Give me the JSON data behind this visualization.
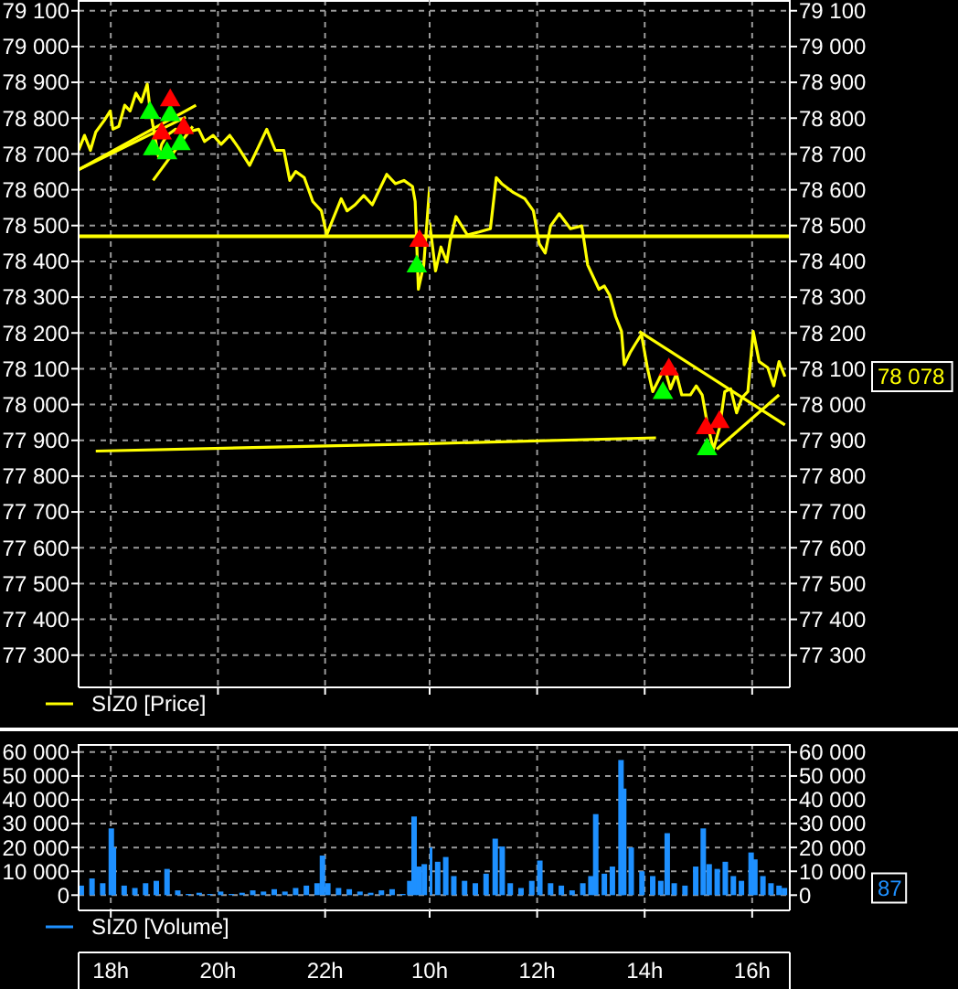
{
  "chart_data": [
    {
      "type": "line",
      "xlim": [
        17.4,
        23.95
      ],
      "xticks": [
        {
          "value": 18,
          "label": null
        },
        {
          "value": 20,
          "label": null
        },
        {
          "value": 22,
          "label": null
        }
      ],
      "ylim": [
        77210,
        79130
      ],
      "yticks": [
        {
          "value": 77300,
          "label": "77 300"
        },
        {
          "value": 77400,
          "label": "77 400"
        },
        {
          "value": 77500,
          "label": "77 500"
        },
        {
          "value": 77600,
          "label": "77 600"
        },
        {
          "value": 77700,
          "label": "77 700"
        },
        {
          "value": 77800,
          "label": "77 800"
        },
        {
          "value": 77900,
          "label": "77 900"
        },
        {
          "value": 78000,
          "label": "78 000"
        },
        {
          "value": 78100,
          "label": "78 100"
        },
        {
          "value": 78200,
          "label": "78 200"
        },
        {
          "value": 78300,
          "label": "78 300"
        },
        {
          "value": 78400,
          "label": "78 400"
        },
        {
          "value": 78500,
          "label": "78 500"
        },
        {
          "value": 78600,
          "label": "78 600"
        },
        {
          "value": 78700,
          "label": "78 700"
        },
        {
          "value": 78800,
          "label": "78 800"
        },
        {
          "value": 78900,
          "label": "78 900"
        },
        {
          "value": 79000,
          "label": "79 000"
        },
        {
          "value": 79100,
          "label": "79 100"
        }
      ],
      "tick_labels": "y",
      "grid": true,
      "legend": "bottom",
      "series": [
        {
          "name": "SIZ0 [Price]",
          "color": "#ffff00",
          "x": [
            17.4,
            17.51,
            17.62,
            17.72,
            17.88,
            17.99,
            18.04,
            18.15,
            18.26,
            18.36,
            18.47,
            18.57,
            18.68,
            18.73,
            18.79,
            18.89,
            18.95,
            19.05,
            19.21,
            19.43,
            19.64,
            19.75,
            19.91,
            20.06,
            20.22,
            20.38,
            20.59,
            20.75,
            20.91,
            21.07,
            21.23,
            21.34,
            21.45,
            21.61,
            21.77,
            21.93,
            22.03,
            22.14,
            22.3,
            22.41,
            22.56,
            22.72,
            22.88,
            23.04,
            23.15,
            23.31,
            23.47,
            23.63,
            23.68,
            23.74,
            23.84,
            23.95
          ],
          "values": [
            78710,
            78752,
            78710,
            78761,
            78794,
            78820,
            78769,
            78777,
            78836,
            78820,
            78870,
            78845,
            78895,
            78828,
            78777,
            78693,
            78727,
            78752,
            78769,
            78761,
            78769,
            78735,
            78752,
            78727,
            78752,
            78718,
            78668,
            78718,
            78769,
            78710,
            78710,
            78626,
            78651,
            78634,
            78567,
            78541,
            78474,
            78516,
            78575,
            78541,
            78558,
            78584,
            78558,
            78609,
            78643,
            78617,
            78626,
            78609,
            78567,
            78322,
            78390,
            78609
          ]
        },
        {
          "type": "line",
          "color": "#ffff00",
          "x": [
            17.72,
            23.95
          ],
          "values": [
            77870,
            77891
          ]
        },
        {
          "type": "line",
          "color": "#ffff00",
          "x": [
            17.4,
            19.59
          ],
          "values": [
            78656,
            78836
          ]
        },
        {
          "type": "line",
          "color": "#ffff00",
          "x": [
            17.4,
            19.4
          ],
          "values": [
            78656,
            78803
          ]
        },
        {
          "type": "line",
          "color": "#ffff00",
          "x": [
            18.79,
            19.53
          ],
          "values": [
            78626,
            78777
          ]
        },
        {
          "type": "scatter",
          "color": "#00ff00",
          "marker": "triangle",
          "x": [
            18.73,
            19.11,
            18.79,
            19.05,
            19.3,
            23.71
          ],
          "values": [
            78815,
            78808,
            78713,
            78702,
            78727,
            78386
          ]
        },
        {
          "type": "scatter",
          "color": "#ff0000",
          "marker": "triangle",
          "x": [
            19.11,
            18.95,
            19.36,
            23.76
          ],
          "values": [
            78850,
            78757,
            78772,
            78457
          ]
        }
      ],
      "ref_lines": [
        {
          "axis": "y",
          "value": 78470,
          "color": "#ffff00"
        }
      ]
    },
    {
      "type": "line",
      "xlim": [
        10.0,
        16.7
      ],
      "xticks": [
        {
          "value": 10,
          "label": null
        },
        {
          "value": 12,
          "label": null
        },
        {
          "value": 14,
          "label": null
        },
        {
          "value": 16,
          "label": null
        }
      ],
      "y2lim": [
        77210,
        79130
      ],
      "y2ticks": [
        {
          "value": 77300,
          "label": "77 300"
        },
        {
          "value": 77400,
          "label": "77 400"
        },
        {
          "value": 77500,
          "label": "77 500"
        },
        {
          "value": 77600,
          "label": "77 600"
        },
        {
          "value": 77700,
          "label": "77 700"
        },
        {
          "value": 77800,
          "label": "77 800"
        },
        {
          "value": 77900,
          "label": "77 900"
        },
        {
          "value": 78000,
          "label": "78 000"
        },
        {
          "value": 78100,
          "label": "78 100"
        },
        {
          "value": 78200,
          "label": "78 200"
        },
        {
          "value": 78300,
          "label": "78 300"
        },
        {
          "value": 78400,
          "label": "78 400"
        },
        {
          "value": 78500,
          "label": "78 500"
        },
        {
          "value": 78600,
          "label": "78 600"
        },
        {
          "value": 78700,
          "label": "78 700"
        },
        {
          "value": 78800,
          "label": "78 800"
        },
        {
          "value": 78900,
          "label": "78 900"
        },
        {
          "value": 79000,
          "label": "79 000"
        },
        {
          "value": 79100,
          "label": "79 100"
        }
      ],
      "tick_labels": "y",
      "grid": true,
      "series": [
        {
          "axis": "y2",
          "color": "#ffff00",
          "x": [
            10.0,
            10.11,
            10.21,
            10.32,
            10.38,
            10.49,
            10.7,
            10.92,
            11.13,
            11.24,
            11.34,
            11.56,
            11.77,
            11.93,
            12.04,
            12.15,
            12.25,
            12.41,
            12.62,
            12.83,
            12.94,
            13.15,
            13.25,
            13.35,
            13.46,
            13.57,
            13.62,
            13.73,
            13.83,
            13.94,
            14.05,
            14.15,
            14.26,
            14.37,
            14.48,
            14.59,
            14.69,
            14.85,
            14.96,
            15.07,
            15.17,
            15.28,
            15.39,
            15.49,
            15.6,
            15.71,
            15.81,
            15.92,
            16.02,
            16.13,
            16.29,
            16.4,
            16.5,
            16.61
          ],
          "values": [
            78508,
            78373,
            78440,
            78398,
            78457,
            78525,
            78474,
            78482,
            78491,
            78634,
            78617,
            78592,
            78575,
            78541,
            78449,
            78423,
            78499,
            78533,
            78491,
            78499,
            78390,
            78322,
            78331,
            78305,
            78246,
            78204,
            78111,
            78145,
            78170,
            78196,
            78103,
            78036,
            78069,
            78103,
            78044,
            78086,
            78027,
            78027,
            78052,
            78027,
            77943,
            77875,
            77934,
            78036,
            78044,
            77977,
            78019,
            78036,
            78204,
            78120,
            78103,
            78052,
            78120,
            78078
          ]
        },
        {
          "type": "line",
          "axis": "y2",
          "color": "#ffff00",
          "x": [
            10.0,
            14.21
          ],
          "values": [
            77891,
            77907
          ]
        },
        {
          "type": "line",
          "axis": "y2",
          "color": "#ffff00",
          "x": [
            13.9,
            16.61
          ],
          "values": [
            78204,
            77943
          ]
        },
        {
          "type": "line",
          "axis": "y2",
          "color": "#ffff00",
          "x": [
            15.34,
            16.5
          ],
          "values": [
            77875,
            78027
          ]
        },
        {
          "type": "scatter",
          "axis": "y2",
          "color": "#00ff00",
          "marker": "triangle",
          "x": [
            14.34,
            15.16
          ],
          "values": [
            78032,
            77875
          ]
        },
        {
          "type": "scatter",
          "axis": "y2",
          "color": "#ff0000",
          "marker": "triangle",
          "x": [
            14.45,
            15.14,
            15.39
          ],
          "values": [
            78098,
            77934,
            77951
          ]
        }
      ],
      "ref_lines": [
        {
          "axis": "y2",
          "value": 78470,
          "color": "#ffff00"
        }
      ],
      "annotations": [
        "78 078"
      ]
    },
    {
      "type": "bar",
      "xlim": [
        17.4,
        23.95
      ],
      "xticks": [
        {
          "value": 18,
          "label": "18h"
        },
        {
          "value": 20,
          "label": "20h"
        },
        {
          "value": 22,
          "label": "22h"
        }
      ],
      "ylim": [
        -6400,
        63400
      ],
      "yticks": [
        {
          "value": 0,
          "label": "0"
        },
        {
          "value": 10000,
          "label": "10 000"
        },
        {
          "value": 20000,
          "label": "20 000"
        },
        {
          "value": 30000,
          "label": "30 000"
        },
        {
          "value": 40000,
          "label": "40 000"
        },
        {
          "value": 50000,
          "label": "50 000"
        },
        {
          "value": 60000,
          "label": "60 000"
        }
      ],
      "grid": true,
      "legend": "bottom",
      "series": [
        {
          "name": "SIZ0 [Volume]",
          "color": "#1e90ff",
          "x": [
            17.45,
            17.65,
            17.85,
            18.01,
            18.05,
            18.25,
            18.45,
            18.65,
            18.85,
            19.05,
            19.25,
            19.45,
            19.65,
            19.85,
            20.05,
            20.25,
            20.45,
            20.65,
            20.85,
            21.05,
            21.25,
            21.45,
            21.65,
            21.85,
            21.95,
            22.05,
            22.25,
            22.45,
            22.65,
            22.85,
            23.05,
            23.25,
            23.45,
            23.58,
            23.66,
            23.75,
            23.85
          ],
          "values": [
            4000,
            7000,
            5000,
            28000,
            20000,
            4000,
            3000,
            5000,
            6000,
            11000,
            2000,
            500,
            1000,
            500,
            1500,
            500,
            1000,
            2000,
            1500,
            2500,
            1500,
            3000,
            4000,
            5000,
            16600,
            5000,
            3000,
            2500,
            1500,
            1000,
            2000,
            2500,
            500,
            6000,
            33000,
            12000,
            13000
          ]
        }
      ]
    },
    {
      "type": "bar",
      "xlim": [
        10.0,
        16.7
      ],
      "xticks": [
        {
          "value": 10,
          "label": "10h"
        },
        {
          "value": 12,
          "label": "12h"
        },
        {
          "value": 14,
          "label": "14h"
        },
        {
          "value": 16,
          "label": "16h"
        }
      ],
      "y2lim": [
        -6400,
        63400
      ],
      "y2ticks": [
        {
          "value": 0,
          "label": "0"
        },
        {
          "value": 10000,
          "label": "10 000"
        },
        {
          "value": 20000,
          "label": "20 000"
        },
        {
          "value": 30000,
          "label": "30 000"
        },
        {
          "value": 40000,
          "label": "40 000"
        },
        {
          "value": 50000,
          "label": "50 000"
        },
        {
          "value": 60000,
          "label": "60 000"
        }
      ],
      "grid": true,
      "series": [
        {
          "color": "#1e90ff",
          "axis": "y2",
          "x": [
            10.0,
            10.15,
            10.3,
            10.45,
            10.65,
            10.85,
            11.05,
            11.22,
            11.35,
            11.5,
            11.7,
            11.9,
            12.05,
            12.25,
            12.45,
            12.65,
            12.85,
            13.0,
            13.09,
            13.25,
            13.4,
            13.56,
            13.61,
            13.75,
            13.95,
            14.15,
            14.3,
            14.42,
            14.55,
            14.75,
            14.95,
            15.09,
            15.2,
            15.35,
            15.5,
            15.65,
            15.8,
            15.98,
            16.05,
            16.2,
            16.35,
            16.5,
            16.6
          ],
          "values": [
            20000,
            14000,
            16000,
            8000,
            6000,
            5000,
            9000,
            23700,
            20400,
            5000,
            3000,
            6000,
            14500,
            5000,
            4000,
            2000,
            5000,
            8000,
            34000,
            9000,
            12000,
            56700,
            44700,
            20000,
            10000,
            8000,
            6000,
            26000,
            5000,
            4000,
            12000,
            28000,
            13000,
            11000,
            14000,
            8000,
            6000,
            17900,
            15000,
            8000,
            5000,
            4000,
            3000
          ]
        }
      ],
      "annotations": [
        "87"
      ]
    }
  ]
}
